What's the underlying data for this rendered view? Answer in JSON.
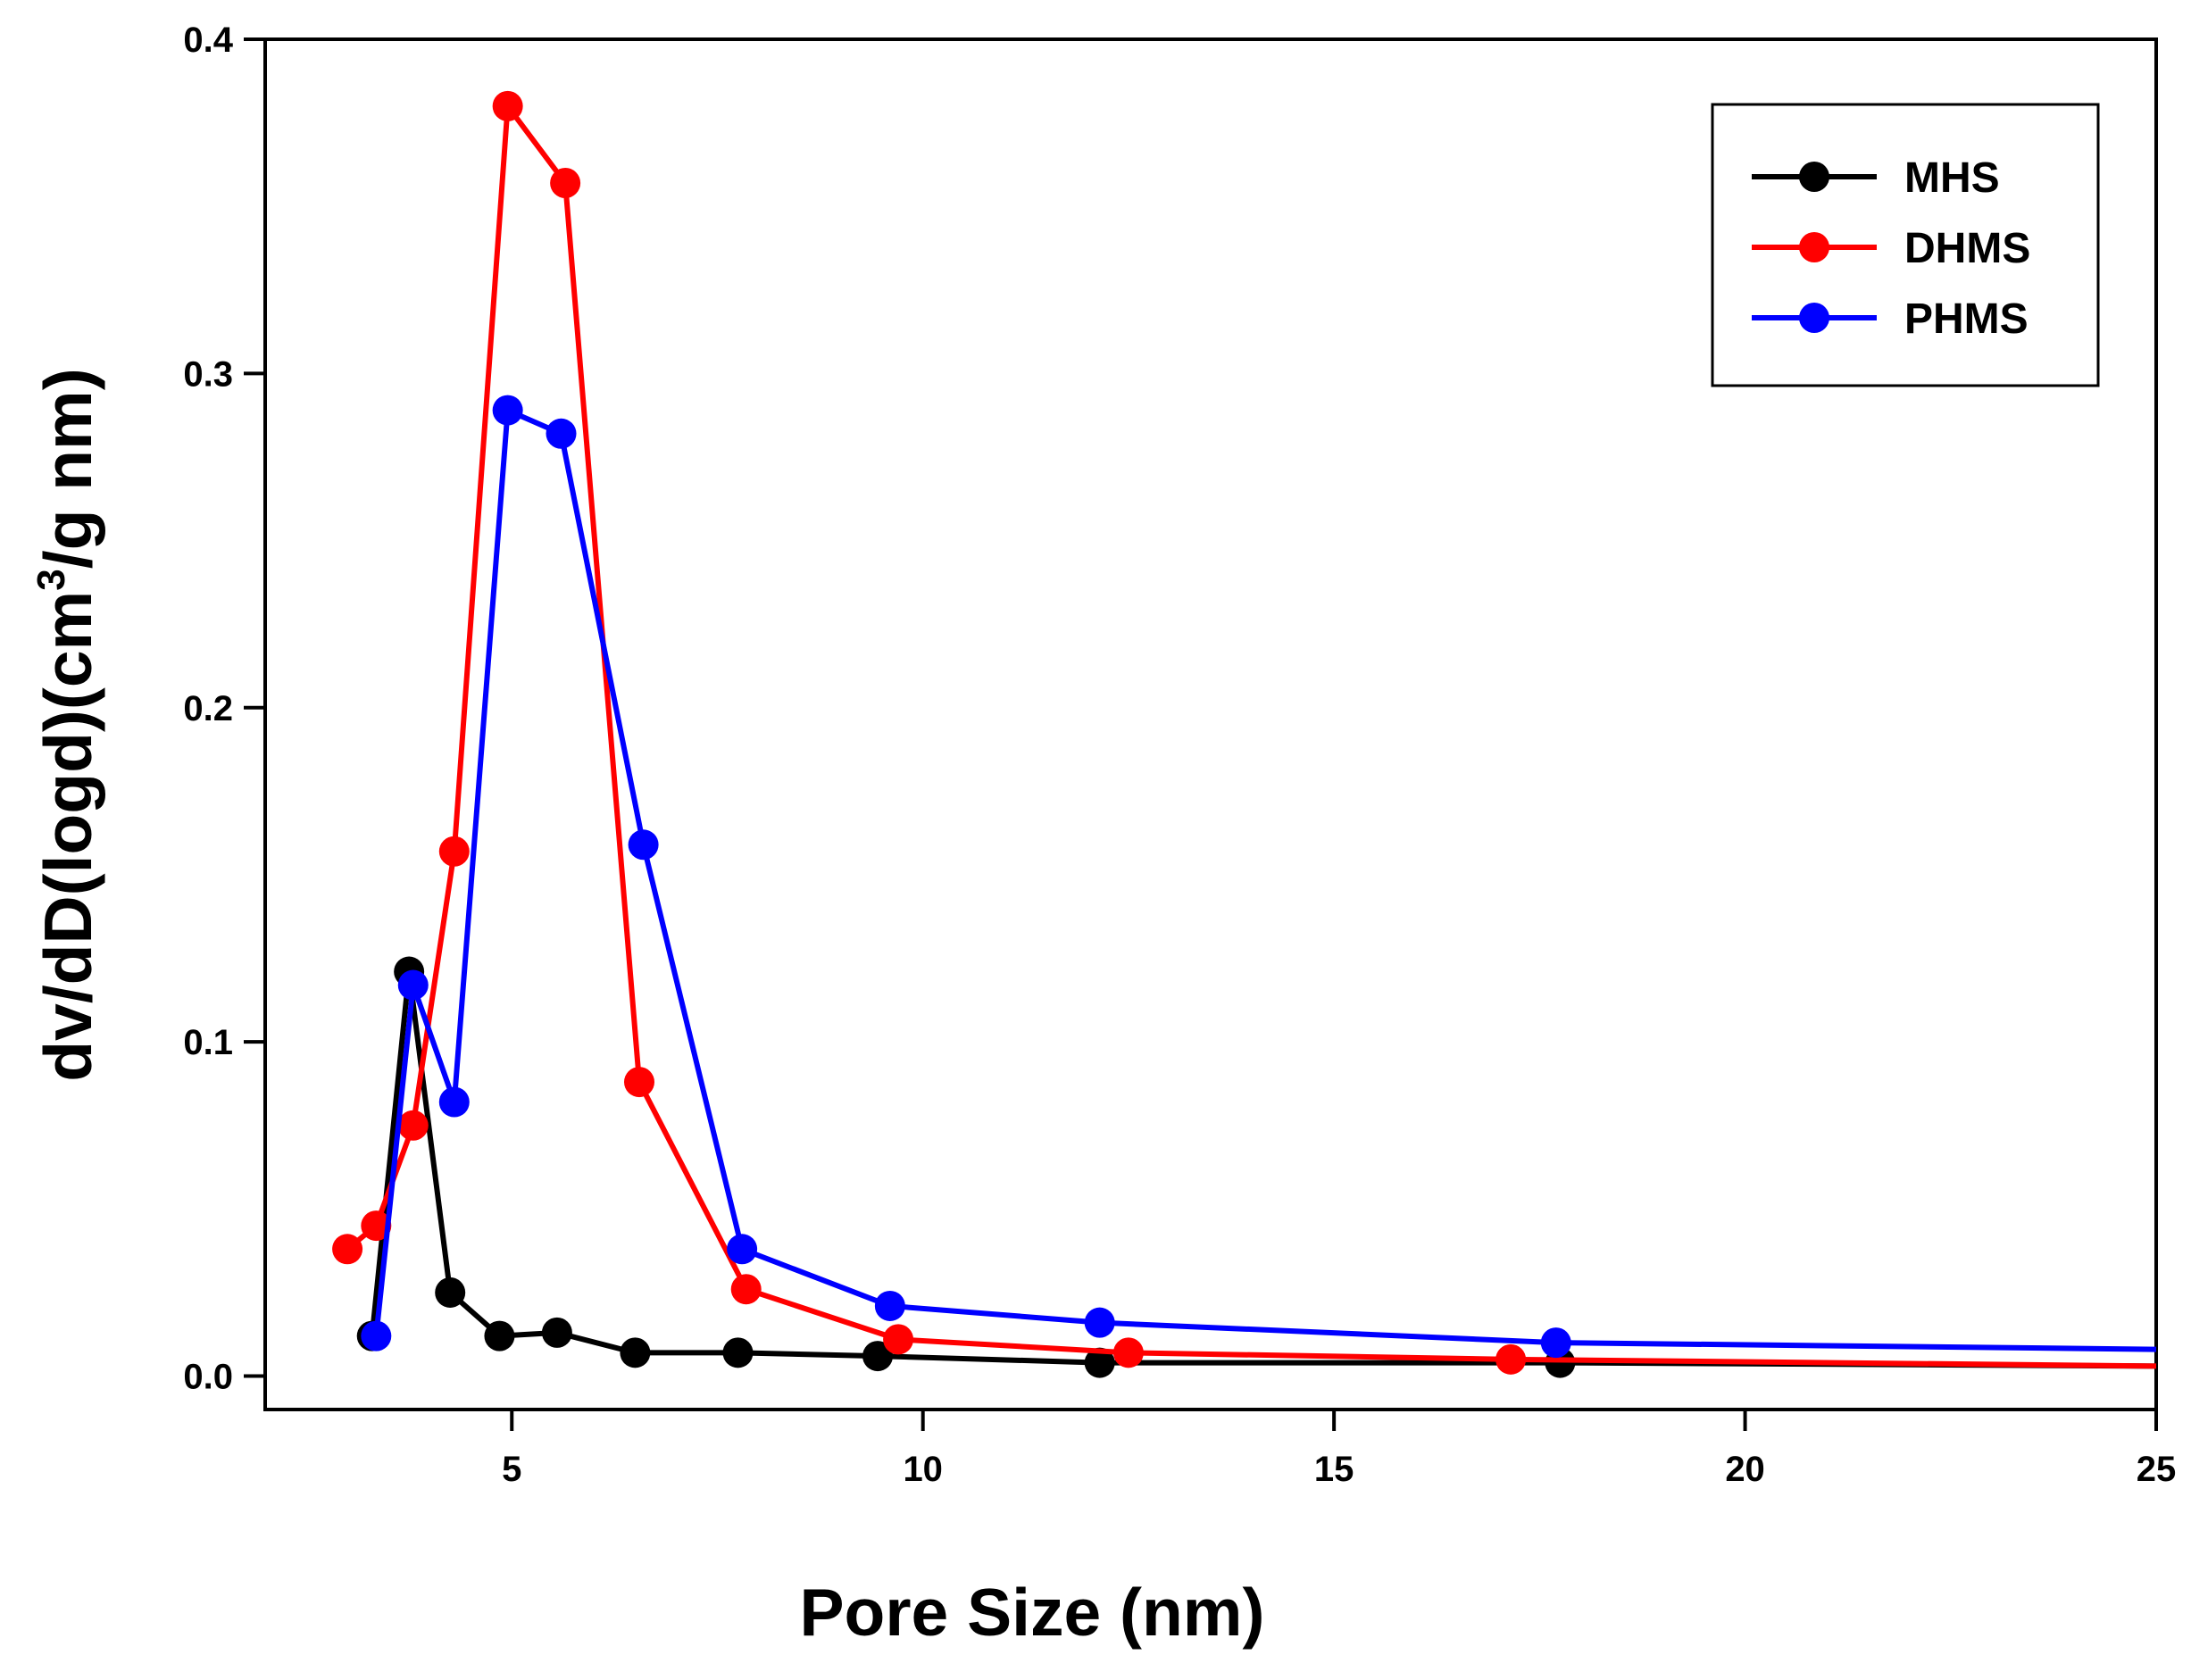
{
  "chart_data": {
    "type": "line",
    "title": "",
    "xlabel": "Pore Size (nm)",
    "ylabel_main": "dv/dD(logd)(cm",
    "ylabel_sup": "3",
    "ylabel_end": "/g nm)",
    "xlim": [
      2,
      25
    ],
    "ylim": [
      -0.01,
      0.4
    ],
    "xticks": [
      5,
      10,
      15,
      20,
      25
    ],
    "xtick_labels": [
      "5",
      "10",
      "15",
      "20",
      "25"
    ],
    "yticks": [
      0.0,
      0.1,
      0.2,
      0.3,
      0.4
    ],
    "ytick_labels": [
      "0.0",
      "0.1",
      "0.2",
      "0.3",
      "0.4"
    ],
    "grid": false,
    "legend_position": "top-right",
    "series": [
      {
        "name": "MHS",
        "color": "#000000",
        "x": [
          3.3,
          3.75,
          4.25,
          4.85,
          5.55,
          6.5,
          7.75,
          9.45,
          12.15,
          17.75,
          25
        ],
        "y": [
          0.012,
          0.121,
          0.025,
          0.012,
          0.013,
          0.007,
          0.007,
          0.006,
          0.004,
          0.004,
          0.003
        ],
        "markers": [
          true,
          true,
          true,
          true,
          true,
          true,
          true,
          true,
          true,
          true,
          false
        ]
      },
      {
        "name": "DHMS",
        "color": "#ff0000",
        "x": [
          3.0,
          3.35,
          3.8,
          4.3,
          4.95,
          5.65,
          6.55,
          7.85,
          9.7,
          12.5,
          17.15,
          25
        ],
        "y": [
          0.038,
          0.045,
          0.075,
          0.157,
          0.38,
          0.357,
          0.088,
          0.026,
          0.011,
          0.007,
          0.005,
          0.003
        ],
        "markers": [
          true,
          true,
          true,
          true,
          true,
          true,
          true,
          true,
          true,
          true,
          true,
          false
        ]
      },
      {
        "name": "PHMS",
        "color": "#0000ff",
        "x": [
          3.35,
          3.8,
          4.3,
          4.95,
          5.6,
          6.6,
          7.8,
          9.6,
          12.15,
          17.7,
          25
        ],
        "y": [
          0.012,
          0.117,
          0.082,
          0.289,
          0.282,
          0.159,
          0.038,
          0.021,
          0.016,
          0.01,
          0.008
        ],
        "markers": [
          true,
          true,
          true,
          true,
          true,
          true,
          true,
          true,
          true,
          true,
          false
        ]
      }
    ]
  }
}
